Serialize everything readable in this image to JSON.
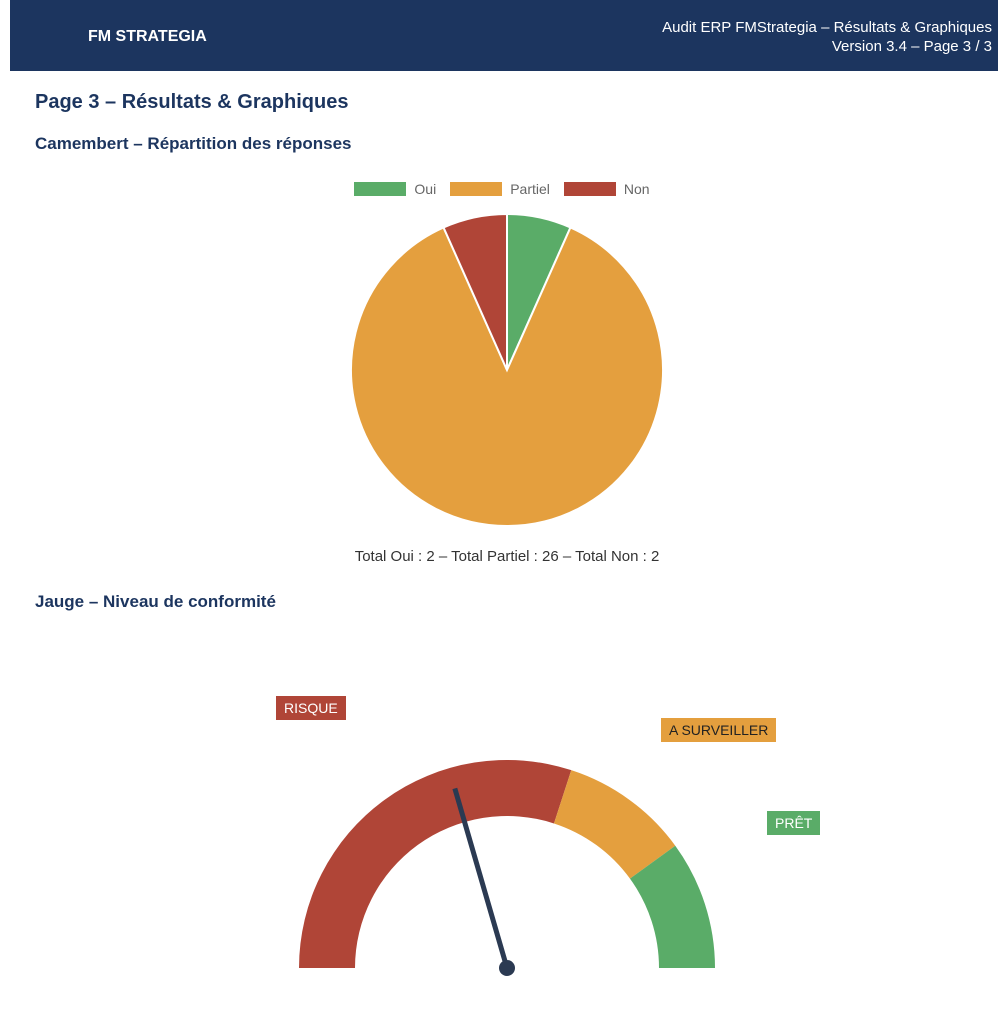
{
  "header": {
    "brand": "FM STRATEGIA",
    "title": "Audit ERP FMStrategia – Résultats & Graphiques",
    "subtitle": "Version 3.4 – Page 3 / 3"
  },
  "page_title": "Page 3 – Résultats & Graphiques",
  "chart_data": [
    {
      "type": "pie",
      "title": "Camembert – Répartition des réponses",
      "categories": [
        "Oui",
        "Partiel",
        "Non"
      ],
      "values": [
        2,
        26,
        2
      ],
      "colors": [
        "#5aac68",
        "#e49f3e",
        "#b04537"
      ],
      "legend_position": "top",
      "totals_text": "Total Oui : 2 – Total Partiel : 26 – Total Non : 2"
    },
    {
      "type": "gauge",
      "title": "Jauge – Niveau de conformité",
      "range": [
        0,
        100
      ],
      "value": 41,
      "zones": [
        {
          "label": "RISQUE",
          "from": 0,
          "to": 60,
          "color": "#b04537"
        },
        {
          "label": "A SURVEILLER",
          "from": 60,
          "to": 80,
          "color": "#e49f3e"
        },
        {
          "label": "PRÊT",
          "from": 80,
          "to": 100,
          "color": "#5aac68"
        }
      ],
      "needle_color": "#2b3a52"
    }
  ]
}
